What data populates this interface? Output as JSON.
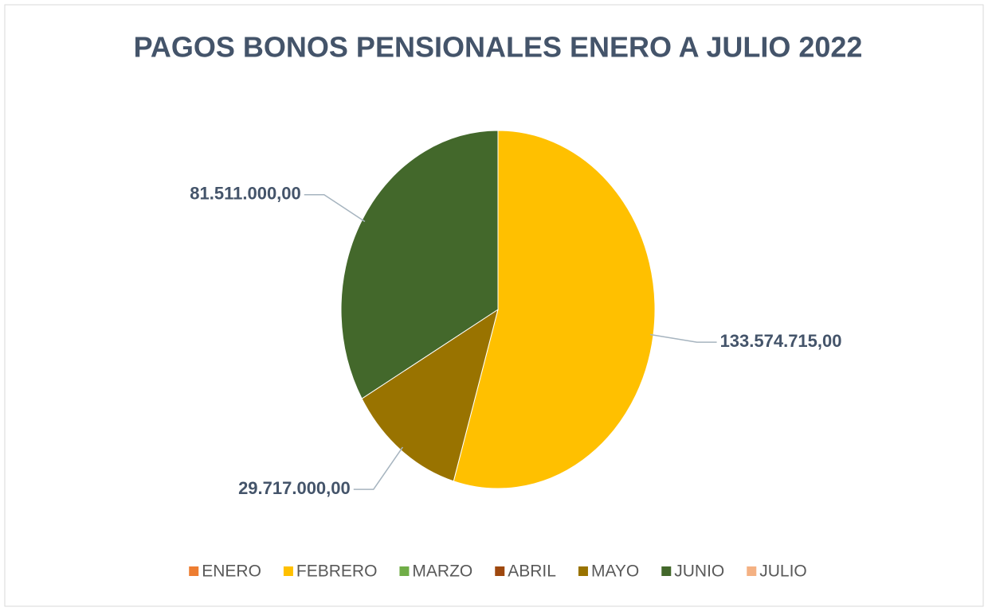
{
  "chart_data": {
    "type": "pie",
    "title": "PAGOS BONOS PENSIONALES ENERO A JULIO 2022",
    "categories": [
      "ENERO",
      "FEBRERO",
      "MARZO",
      "ABRIL",
      "MAYO",
      "JUNIO",
      "JULIO"
    ],
    "values": [
      0,
      133574715,
      0,
      0,
      29717000,
      81511000,
      0
    ],
    "value_labels": [
      null,
      "133.574.715,00",
      null,
      null,
      "29.717.000,00",
      "81.511.000,00",
      null
    ],
    "colors": [
      "#ed7d31",
      "#ffc000",
      "#70ad47",
      "#9e480e",
      "#997300",
      "#43682b",
      "#f4b183"
    ],
    "legend": "bottom"
  }
}
